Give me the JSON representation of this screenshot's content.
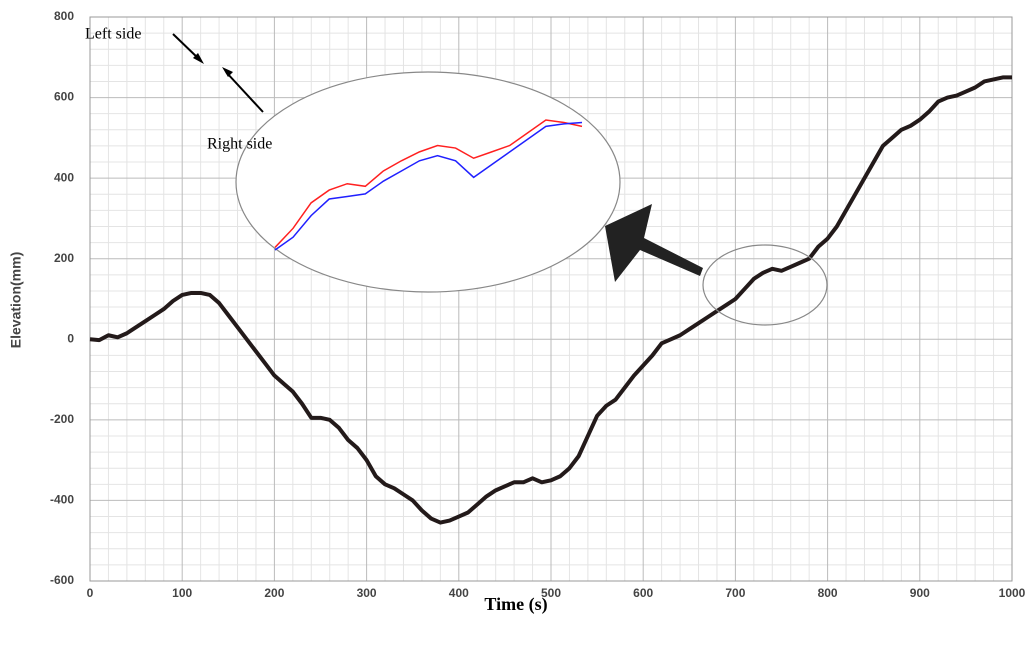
{
  "chart_data": {
    "type": "line",
    "x_label": "Time (s)",
    "y_label": "Elevation(mm)",
    "xlim": [
      0,
      1000
    ],
    "xticks": [
      0,
      100,
      200,
      300,
      400,
      500,
      600,
      700,
      800,
      900,
      1000
    ],
    "ylim": [
      -600,
      800
    ],
    "yticks": [
      -600,
      -400,
      -200,
      0,
      200,
      400,
      600,
      800
    ],
    "grid": true,
    "minor_divisions": 5,
    "x": [
      0,
      10,
      20,
      30,
      40,
      50,
      60,
      70,
      80,
      90,
      100,
      110,
      120,
      130,
      140,
      150,
      160,
      170,
      180,
      190,
      200,
      210,
      220,
      230,
      240,
      250,
      260,
      270,
      280,
      290,
      300,
      310,
      320,
      330,
      340,
      350,
      360,
      370,
      380,
      390,
      400,
      410,
      420,
      430,
      440,
      450,
      460,
      470,
      480,
      490,
      500,
      510,
      520,
      530,
      540,
      550,
      560,
      570,
      580,
      590,
      600,
      610,
      620,
      630,
      640,
      650,
      660,
      670,
      680,
      690,
      700,
      710,
      720,
      730,
      740,
      750,
      760,
      770,
      780,
      790,
      800,
      810,
      820,
      830,
      840,
      850,
      860,
      870,
      880,
      890,
      900,
      910,
      920,
      930,
      940,
      950,
      960,
      970,
      980,
      990,
      1000
    ],
    "series": [
      {
        "color": "#231a1a",
        "values": [
          0,
          -2,
          10,
          5,
          15,
          30,
          45,
          60,
          75,
          95,
          110,
          115,
          115,
          110,
          90,
          60,
          30,
          0,
          -30,
          -60,
          -90,
          -110,
          -130,
          -160,
          -195,
          -195,
          -200,
          -220,
          -250,
          -270,
          -300,
          -340,
          -360,
          -370,
          -385,
          -400,
          -425,
          -445,
          -455,
          -450,
          -440,
          -430,
          -410,
          -390,
          -375,
          -365,
          -355,
          -355,
          -345,
          -355,
          -350,
          -340,
          -320,
          -290,
          -240,
          -190,
          -165,
          -150,
          -120,
          -90,
          -65,
          -40,
          -10,
          0,
          10,
          25,
          40,
          55,
          70,
          85,
          100,
          125,
          150,
          165,
          175,
          170,
          180,
          190,
          200,
          230,
          250,
          280,
          320,
          360,
          400,
          440,
          480,
          500,
          520,
          530,
          545,
          565,
          590,
          600,
          605,
          615,
          625,
          640,
          645,
          650,
          650
        ]
      }
    ],
    "inset": {
      "x": [
        680,
        687,
        694,
        701,
        708,
        715,
        722,
        729,
        736,
        743,
        750,
        757,
        764,
        771,
        778,
        785,
        792,
        799
      ],
      "series": [
        {
          "color": "#ff2020",
          "values": [
            80,
            95,
            115,
            125,
            130,
            128,
            140,
            148,
            155,
            160,
            158,
            150,
            155,
            160,
            170,
            180,
            178,
            175
          ]
        },
        {
          "color": "#2020ff",
          "values": [
            78,
            88,
            105,
            118,
            120,
            122,
            132,
            140,
            148,
            152,
            148,
            135,
            145,
            155,
            165,
            175,
            177,
            178
          ]
        }
      ]
    },
    "annotations": [
      "Left side",
      "Right side"
    ]
  }
}
